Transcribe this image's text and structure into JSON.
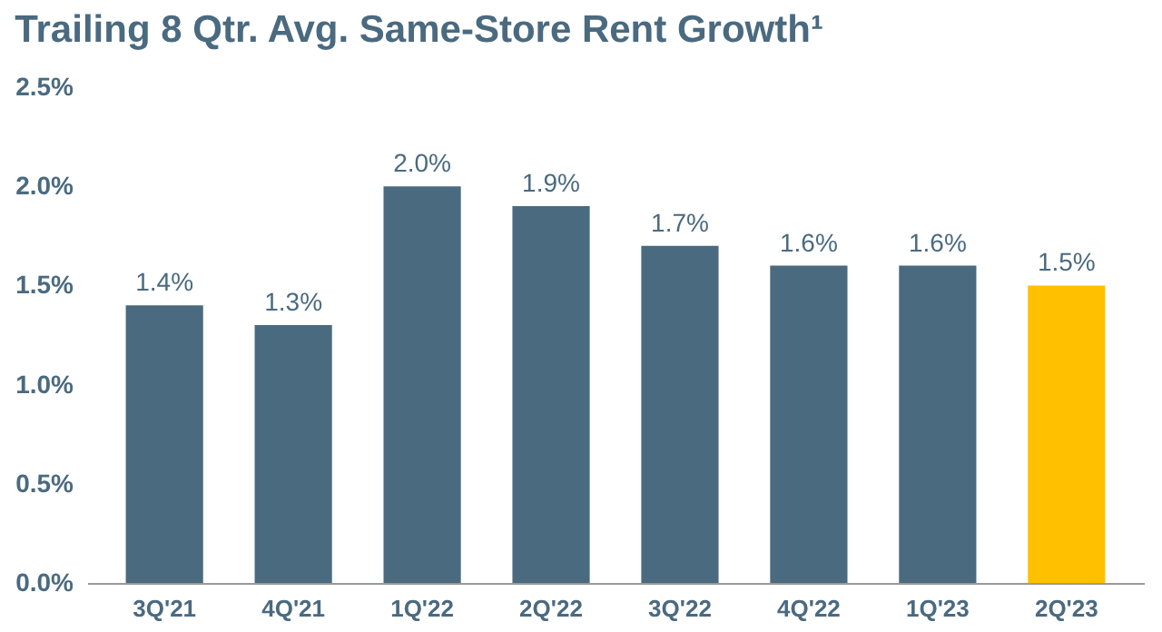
{
  "chart_data": {
    "type": "bar",
    "title": "Trailing 8 Qtr. Avg. Same-Store Rent Growth¹",
    "categories": [
      "3Q'21",
      "4Q'21",
      "1Q'22",
      "2Q'22",
      "3Q'22",
      "4Q'22",
      "1Q'23",
      "2Q'23"
    ],
    "values": [
      1.4,
      1.3,
      2.0,
      1.9,
      1.7,
      1.6,
      1.6,
      1.5
    ],
    "colors": [
      "#4a6a80",
      "#4a6a80",
      "#4a6a80",
      "#4a6a80",
      "#4a6a80",
      "#4a6a80",
      "#4a6a80",
      "#ffc000"
    ],
    "value_labels": [
      "1.4%",
      "1.3%",
      "2.0%",
      "1.9%",
      "1.7%",
      "1.6%",
      "1.6%",
      "1.5%"
    ],
    "ylim": [
      0,
      2.5
    ],
    "yticks": [
      {
        "value": 0,
        "label": "0.0%"
      },
      {
        "value": 0.5,
        "label": "0.5%"
      },
      {
        "value": 1.0,
        "label": "1.0%"
      },
      {
        "value": 1.5,
        "label": "1.5%"
      },
      {
        "value": 2.0,
        "label": "2.0%"
      },
      {
        "value": 2.5,
        "label": "2.5%"
      }
    ],
    "grid": false
  }
}
